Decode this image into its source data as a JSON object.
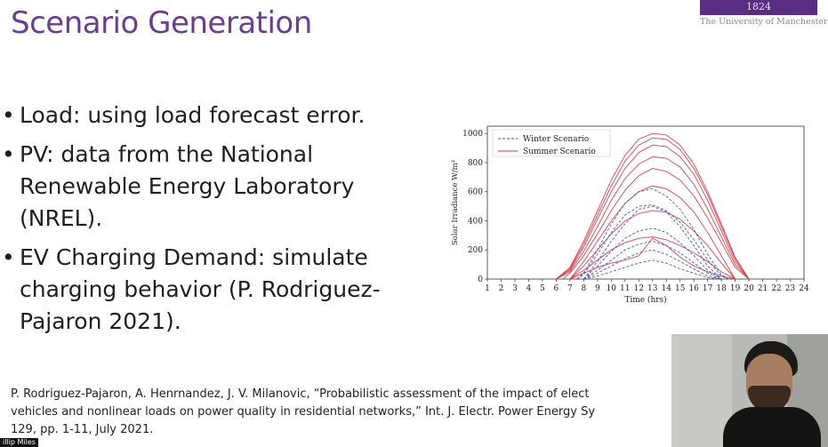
{
  "slide": {
    "title": "Scenario Generation",
    "logo_year": "1824",
    "logo_text": "The University of Manchester",
    "bullets": [
      "Load: using load forecast error.",
      "PV: data from the National Renewable Energy Laboratory (NREL).",
      "EV Charging Demand: simulate charging behavior (P. Rodriguez-Pajaron 2021)."
    ],
    "bullet_lines": [
      [
        "Load: using load forecast error."
      ],
      [
        "PV: data from the National",
        "Renewable Energy Laboratory",
        "(NREL)."
      ],
      [
        "EV Charging Demand: simulate",
        "charging behavior (P. Rodriguez-",
        "Pajaron 2021)."
      ]
    ],
    "citation_lines": [
      "P. Rodriguez-Pajaron, A. Henrnandez, J. V. Milanovic, “Probabilistic assessment of the impact of elect",
      "vehicles and nonlinear loads on power quality in residential networks,” Int. J. Electr. Power Energy Sy",
      "129, pp. 1-11, July 2021."
    ]
  },
  "video": {
    "participant_label": "illip Miles"
  },
  "colors": {
    "title": "#6a3d8f",
    "logo": "#5a2d82",
    "winter": "#3d4fb5",
    "summer": "#d0384a"
  },
  "chart_data": {
    "type": "line",
    "xlabel": "Time (hrs)",
    "ylabel": "Solar Irradiance W/m²",
    "xlim": [
      1,
      24
    ],
    "ylim": [
      0,
      1050
    ],
    "xticks": [
      1,
      2,
      3,
      4,
      5,
      6,
      7,
      8,
      9,
      10,
      11,
      12,
      13,
      14,
      15,
      16,
      17,
      18,
      19,
      20,
      21,
      22,
      23,
      24
    ],
    "yticks": [
      0,
      200,
      400,
      600,
      800,
      1000
    ],
    "legend_position": "top-left",
    "grid": false,
    "legend": [
      {
        "label": "Winter Scenario",
        "style": "dashed"
      },
      {
        "label": "Summer Scenario",
        "style": "solid"
      }
    ],
    "series": [
      {
        "group": "summer",
        "x": [
          6,
          7,
          8,
          9,
          10,
          11,
          12,
          13,
          14,
          15,
          16,
          17,
          18,
          19,
          20
        ],
        "values": [
          0,
          80,
          260,
          470,
          680,
          850,
          960,
          1000,
          990,
          920,
          790,
          600,
          380,
          150,
          0
        ]
      },
      {
        "group": "summer",
        "x": [
          6,
          7,
          8,
          9,
          10,
          11,
          12,
          13,
          14,
          15,
          16,
          17,
          18,
          19,
          20
        ],
        "values": [
          0,
          70,
          240,
          440,
          640,
          810,
          920,
          970,
          960,
          890,
          760,
          580,
          360,
          140,
          0
        ]
      },
      {
        "group": "summer",
        "x": [
          6,
          7,
          8,
          9,
          10,
          11,
          12,
          13,
          14,
          15,
          16,
          17,
          18,
          19,
          20
        ],
        "values": [
          0,
          60,
          220,
          410,
          600,
          760,
          870,
          920,
          910,
          840,
          720,
          540,
          330,
          120,
          0
        ]
      },
      {
        "group": "summer",
        "x": [
          6,
          7,
          8,
          9,
          10,
          11,
          12,
          13,
          14,
          15,
          16,
          17,
          18,
          19,
          20
        ],
        "values": [
          0,
          50,
          190,
          360,
          540,
          690,
          790,
          840,
          830,
          770,
          650,
          480,
          290,
          100,
          0
        ]
      },
      {
        "group": "summer",
        "x": [
          6.5,
          7,
          8,
          9,
          10,
          11,
          12,
          13,
          14,
          15,
          16,
          17,
          18,
          19,
          20
        ],
        "values": [
          0,
          40,
          160,
          310,
          470,
          610,
          710,
          760,
          740,
          680,
          570,
          420,
          250,
          80,
          0
        ]
      },
      {
        "group": "summer",
        "x": [
          7,
          8,
          9,
          10,
          11,
          12,
          13,
          14,
          15,
          16,
          17,
          18,
          19
        ],
        "values": [
          0,
          120,
          260,
          400,
          520,
          600,
          640,
          620,
          560,
          460,
          320,
          160,
          0
        ]
      },
      {
        "group": "summer",
        "x": [
          7,
          8,
          9,
          10,
          11,
          12,
          13,
          14,
          15,
          16,
          17,
          18,
          19
        ],
        "values": [
          0,
          90,
          200,
          310,
          400,
          450,
          470,
          460,
          410,
          330,
          230,
          110,
          0
        ]
      },
      {
        "group": "summer",
        "x": [
          7,
          8,
          9,
          10,
          11,
          12,
          13,
          14,
          15,
          16,
          17,
          18,
          19
        ],
        "values": [
          0,
          60,
          130,
          200,
          250,
          280,
          290,
          270,
          230,
          180,
          120,
          50,
          0
        ]
      },
      {
        "group": "summer",
        "x": [
          7,
          8,
          9,
          10,
          11,
          12,
          13,
          14,
          15,
          16,
          17,
          18,
          19
        ],
        "values": [
          0,
          40,
          80,
          110,
          130,
          160,
          280,
          230,
          150,
          90,
          50,
          20,
          0
        ]
      },
      {
        "group": "winter",
        "x": [
          7.5,
          8,
          9,
          10,
          11,
          12,
          13,
          14,
          15,
          16,
          17,
          18,
          18.5
        ],
        "values": [
          0,
          40,
          200,
          380,
          520,
          600,
          620,
          570,
          480,
          340,
          170,
          30,
          0
        ]
      },
      {
        "group": "winter",
        "x": [
          7.5,
          8,
          9,
          10,
          11,
          12,
          13,
          14,
          15,
          16,
          17,
          18,
          18.5
        ],
        "values": [
          0,
          30,
          170,
          320,
          440,
          500,
          510,
          470,
          390,
          270,
          130,
          20,
          0
        ]
      },
      {
        "group": "winter",
        "x": [
          8,
          9,
          10,
          11,
          12,
          13,
          14,
          15,
          16,
          17,
          18
        ],
        "values": [
          0,
          120,
          260,
          380,
          480,
          500,
          460,
          360,
          230,
          90,
          0
        ]
      },
      {
        "group": "winter",
        "x": [
          8,
          9,
          10,
          11,
          12,
          13,
          14,
          15,
          16,
          17,
          18
        ],
        "values": [
          0,
          90,
          190,
          280,
          330,
          350,
          320,
          250,
          160,
          60,
          0
        ]
      },
      {
        "group": "winter",
        "x": [
          8,
          9,
          10,
          11,
          12,
          13,
          14,
          15,
          16,
          17,
          18
        ],
        "values": [
          0,
          60,
          130,
          200,
          240,
          260,
          230,
          180,
          110,
          40,
          0
        ]
      },
      {
        "group": "winter",
        "x": [
          8,
          9,
          10,
          11,
          12,
          13,
          14,
          15,
          16,
          17,
          18
        ],
        "values": [
          0,
          40,
          90,
          140,
          180,
          200,
          170,
          120,
          70,
          20,
          0
        ]
      },
      {
        "group": "winter",
        "x": [
          8,
          9,
          10,
          11,
          12,
          13,
          14,
          15,
          16,
          17,
          18
        ],
        "values": [
          0,
          20,
          50,
          80,
          110,
          130,
          110,
          70,
          40,
          10,
          0
        ]
      }
    ]
  }
}
